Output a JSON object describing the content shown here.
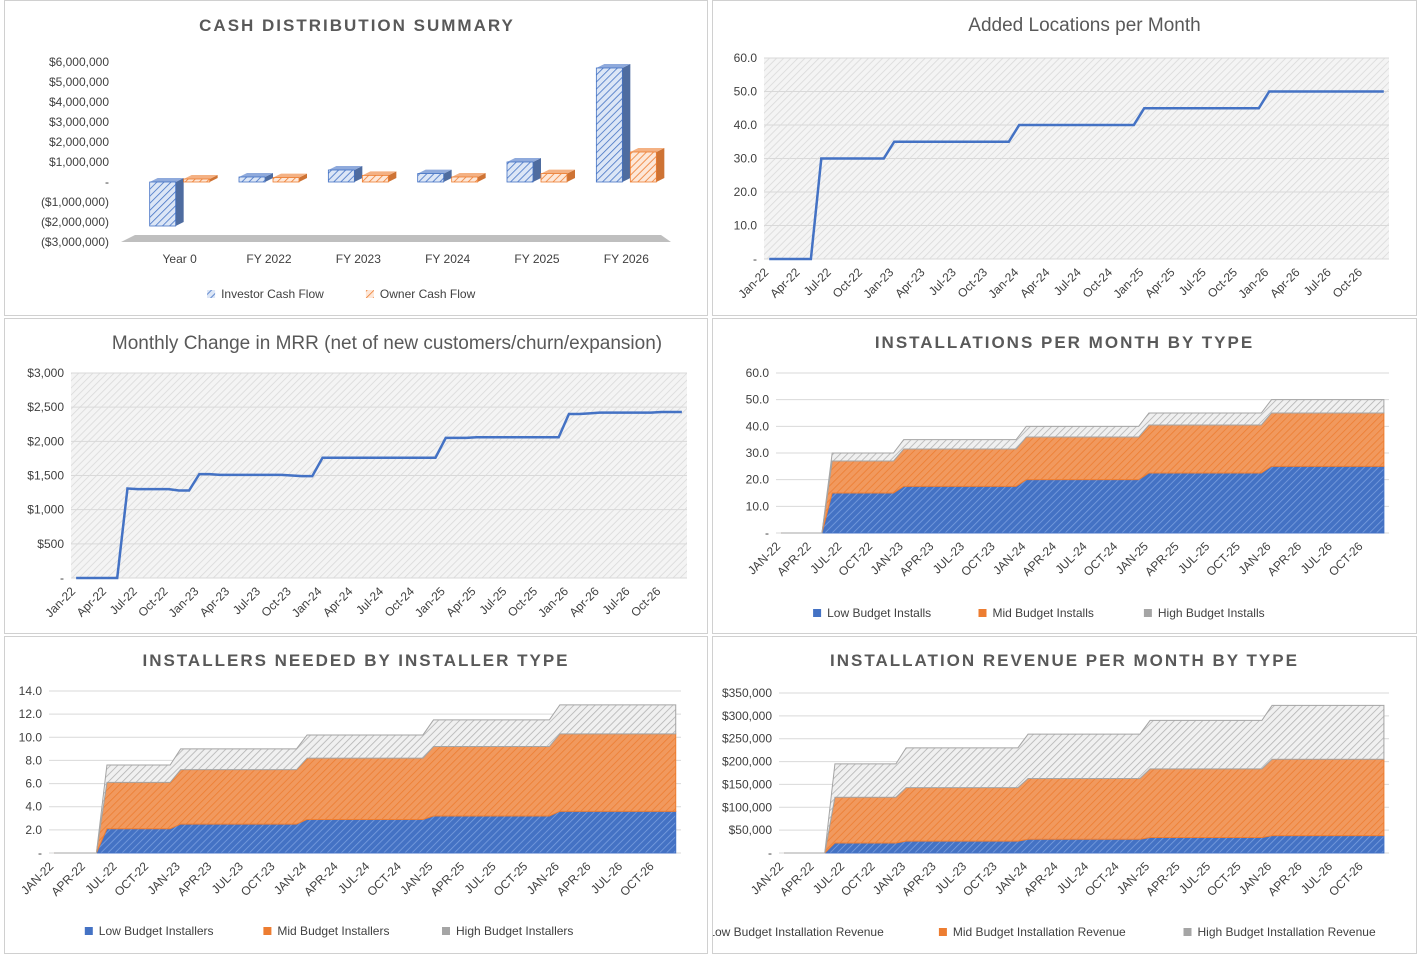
{
  "colors": {
    "blue": "#4472c4",
    "orange": "#ed7d31",
    "gray": "#a5a5a5",
    "plot_bg": "#f2f2f2",
    "title": "#595959"
  },
  "chart_data": [
    {
      "id": "cash",
      "type": "bar",
      "title": "CASH DISTRIBUTION SUMMARY",
      "categories": [
        "Year 0",
        "FY 2022",
        "FY 2023",
        "FY 2024",
        "FY 2025",
        "FY 2026"
      ],
      "series": [
        {
          "name": "Investor Cash Flow",
          "values": [
            -2200000,
            250000,
            600000,
            420000,
            1000000,
            5700000
          ]
        },
        {
          "name": "Owner Cash Flow",
          "values": [
            150000,
            220000,
            330000,
            250000,
            420000,
            1500000
          ]
        }
      ],
      "ylim": [
        -3000000,
        6000000
      ],
      "yticks": [
        {
          "v": 6000000,
          "label": "$6,000,000"
        },
        {
          "v": 5000000,
          "label": "$5,000,000"
        },
        {
          "v": 4000000,
          "label": "$4,000,000"
        },
        {
          "v": 3000000,
          "label": "$3,000,000"
        },
        {
          "v": 2000000,
          "label": "$2,000,000"
        },
        {
          "v": 1000000,
          "label": "$1,000,000"
        },
        {
          "v": 0,
          "label": "-"
        },
        {
          "v": -1000000,
          "label": "($1,000,000)"
        },
        {
          "v": -2000000,
          "label": "($2,000,000)"
        },
        {
          "v": -3000000,
          "label": "($3,000,000)"
        }
      ],
      "legend": "bottom"
    },
    {
      "id": "locations",
      "type": "line",
      "title": "Added Locations per Month",
      "x_labels": [
        "Jan-22",
        "Apr-22",
        "Jul-22",
        "Oct-22",
        "Jan-23",
        "Apr-23",
        "Jul-23",
        "Oct-23",
        "Jan-24",
        "Apr-24",
        "Jul-24",
        "Oct-24",
        "Jan-25",
        "Apr-25",
        "Jul-25",
        "Oct-25",
        "Jan-26",
        "Apr-26",
        "Jul-26",
        "Oct-26"
      ],
      "series": [
        {
          "values": [
            0,
            0,
            0,
            0,
            0,
            30,
            30,
            30,
            30,
            30,
            30,
            30,
            35,
            35,
            35,
            35,
            35,
            35,
            35,
            35,
            35,
            35,
            35,
            35,
            40,
            40,
            40,
            40,
            40,
            40,
            40,
            40,
            40,
            40,
            40,
            40,
            45,
            45,
            45,
            45,
            45,
            45,
            45,
            45,
            45,
            45,
            45,
            45,
            50,
            50,
            50,
            50,
            50,
            50,
            50,
            50,
            50,
            50,
            50,
            50
          ]
        }
      ],
      "ylim": [
        0,
        60
      ],
      "yticks": [
        "-",
        "10.0",
        "20.0",
        "30.0",
        "40.0",
        "50.0",
        "60.0"
      ],
      "legend": "none"
    },
    {
      "id": "mrr",
      "type": "line",
      "title": "Monthly Change in MRR (net of new customers/churn/expansion)",
      "x_labels": [
        "Jan-22",
        "Apr-22",
        "Jul-22",
        "Oct-22",
        "Jan-23",
        "Apr-23",
        "Jul-23",
        "Oct-23",
        "Jan-24",
        "Apr-24",
        "Jul-24",
        "Oct-24",
        "Jan-25",
        "Apr-25",
        "Jul-25",
        "Oct-25",
        "Jan-26",
        "Apr-26",
        "Jul-26",
        "Oct-26"
      ],
      "series": [
        {
          "values": [
            0,
            0,
            0,
            0,
            0,
            1310,
            1300,
            1300,
            1300,
            1300,
            1280,
            1280,
            1520,
            1520,
            1510,
            1510,
            1510,
            1510,
            1510,
            1510,
            1510,
            1500,
            1490,
            1490,
            1760,
            1760,
            1760,
            1760,
            1760,
            1760,
            1760,
            1760,
            1760,
            1760,
            1760,
            1760,
            2050,
            2050,
            2050,
            2060,
            2060,
            2060,
            2060,
            2060,
            2060,
            2060,
            2060,
            2060,
            2400,
            2400,
            2410,
            2420,
            2420,
            2420,
            2420,
            2420,
            2420,
            2430,
            2430,
            2430
          ]
        }
      ],
      "ylim": [
        0,
        3000
      ],
      "yticks": [
        "-",
        "$500",
        "$1,000",
        "$1,500",
        "$2,000",
        "$2,500",
        "$3,000"
      ],
      "legend": "none"
    },
    {
      "id": "installs",
      "type": "area",
      "stacked": true,
      "title": "INSTALLATIONS PER MONTH BY TYPE",
      "x_labels": [
        "JAN-22",
        "APR-22",
        "JUL-22",
        "OCT-22",
        "JAN-23",
        "APR-23",
        "JUL-23",
        "OCT-23",
        "JAN-24",
        "APR-24",
        "JUL-24",
        "OCT-24",
        "JAN-25",
        "APR-25",
        "JUL-25",
        "OCT-25",
        "JAN-26",
        "APR-26",
        "JUL-26",
        "OCT-26"
      ],
      "series": [
        {
          "name": "Low Budget Installs",
          "values": [
            0,
            0,
            0,
            0,
            0,
            15,
            15,
            15,
            15,
            15,
            15,
            15,
            17.5,
            17.5,
            17.5,
            17.5,
            17.5,
            17.5,
            17.5,
            17.5,
            17.5,
            17.5,
            17.5,
            17.5,
            20,
            20,
            20,
            20,
            20,
            20,
            20,
            20,
            20,
            20,
            20,
            20,
            22.5,
            22.5,
            22.5,
            22.5,
            22.5,
            22.5,
            22.5,
            22.5,
            22.5,
            22.5,
            22.5,
            22.5,
            25,
            25,
            25,
            25,
            25,
            25,
            25,
            25,
            25,
            25,
            25,
            25
          ]
        },
        {
          "name": "Mid Budget Installs",
          "values": [
            0,
            0,
            0,
            0,
            0,
            12,
            12,
            12,
            12,
            12,
            12,
            12,
            14,
            14,
            14,
            14,
            14,
            14,
            14,
            14,
            14,
            14,
            14,
            14,
            16,
            16,
            16,
            16,
            16,
            16,
            16,
            16,
            16,
            16,
            16,
            16,
            18,
            18,
            18,
            18,
            18,
            18,
            18,
            18,
            18,
            18,
            18,
            18,
            20,
            20,
            20,
            20,
            20,
            20,
            20,
            20,
            20,
            20,
            20,
            20
          ]
        },
        {
          "name": "High Budget Installs",
          "values": [
            0,
            0,
            0,
            0,
            0,
            3,
            3,
            3,
            3,
            3,
            3,
            3,
            3.5,
            3.5,
            3.5,
            3.5,
            3.5,
            3.5,
            3.5,
            3.5,
            3.5,
            3.5,
            3.5,
            3.5,
            4,
            4,
            4,
            4,
            4,
            4,
            4,
            4,
            4,
            4,
            4,
            4,
            4.5,
            4.5,
            4.5,
            4.5,
            4.5,
            4.5,
            4.5,
            4.5,
            4.5,
            4.5,
            4.5,
            4.5,
            5,
            5,
            5,
            5,
            5,
            5,
            5,
            5,
            5,
            5,
            5,
            5
          ]
        }
      ],
      "ylim": [
        0,
        60
      ],
      "yticks": [
        "-",
        "10.0",
        "20.0",
        "30.0",
        "40.0",
        "50.0",
        "60.0"
      ],
      "legend": "bottom"
    },
    {
      "id": "installers",
      "type": "area",
      "stacked": true,
      "title": "INSTALLERS NEEDED BY INSTALLER TYPE",
      "x_labels": [
        "JAN-22",
        "APR-22",
        "JUL-22",
        "OCT-22",
        "JAN-23",
        "APR-23",
        "JUL-23",
        "OCT-23",
        "JAN-24",
        "APR-24",
        "JUL-24",
        "OCT-24",
        "JAN-25",
        "APR-25",
        "JUL-25",
        "OCT-25",
        "JAN-26",
        "APR-26",
        "JUL-26",
        "OCT-26"
      ],
      "series": [
        {
          "name": "Low Budget Installers",
          "values": [
            0,
            0,
            0,
            0,
            0,
            2.1,
            2.1,
            2.1,
            2.1,
            2.1,
            2.1,
            2.1,
            2.5,
            2.5,
            2.5,
            2.5,
            2.5,
            2.5,
            2.5,
            2.5,
            2.5,
            2.5,
            2.5,
            2.5,
            2.9,
            2.9,
            2.9,
            2.9,
            2.9,
            2.9,
            2.9,
            2.9,
            2.9,
            2.9,
            2.9,
            2.9,
            3.2,
            3.2,
            3.2,
            3.2,
            3.2,
            3.2,
            3.2,
            3.2,
            3.2,
            3.2,
            3.2,
            3.2,
            3.6,
            3.6,
            3.6,
            3.6,
            3.6,
            3.6,
            3.6,
            3.6,
            3.6,
            3.6,
            3.6,
            3.6
          ]
        },
        {
          "name": "Mid Budget Installers",
          "values": [
            0,
            0,
            0,
            0,
            0,
            4,
            4,
            4,
            4,
            4,
            4,
            4,
            4.7,
            4.7,
            4.7,
            4.7,
            4.7,
            4.7,
            4.7,
            4.7,
            4.7,
            4.7,
            4.7,
            4.7,
            5.3,
            5.3,
            5.3,
            5.3,
            5.3,
            5.3,
            5.3,
            5.3,
            5.3,
            5.3,
            5.3,
            5.3,
            6,
            6,
            6,
            6,
            6,
            6,
            6,
            6,
            6,
            6,
            6,
            6,
            6.7,
            6.7,
            6.7,
            6.7,
            6.7,
            6.7,
            6.7,
            6.7,
            6.7,
            6.7,
            6.7,
            6.7
          ]
        },
        {
          "name": "High Budget Installers",
          "values": [
            0,
            0,
            0,
            0,
            0,
            1.5,
            1.5,
            1.5,
            1.5,
            1.5,
            1.5,
            1.5,
            1.8,
            1.8,
            1.8,
            1.8,
            1.8,
            1.8,
            1.8,
            1.8,
            1.8,
            1.8,
            1.8,
            1.8,
            2,
            2,
            2,
            2,
            2,
            2,
            2,
            2,
            2,
            2,
            2,
            2,
            2.3,
            2.3,
            2.3,
            2.3,
            2.3,
            2.3,
            2.3,
            2.3,
            2.3,
            2.3,
            2.3,
            2.3,
            2.5,
            2.5,
            2.5,
            2.5,
            2.5,
            2.5,
            2.5,
            2.5,
            2.5,
            2.5,
            2.5,
            2.5
          ]
        }
      ],
      "ylim": [
        0,
        14
      ],
      "yticks": [
        "-",
        "2.0",
        "4.0",
        "6.0",
        "8.0",
        "10.0",
        "12.0",
        "14.0"
      ],
      "legend": "bottom"
    },
    {
      "id": "revenue",
      "type": "area",
      "stacked": true,
      "title": "INSTALLATION REVENUE PER MONTH BY TYPE",
      "x_labels": [
        "JAN-22",
        "APR-22",
        "JUL-22",
        "OCT-22",
        "JAN-23",
        "APR-23",
        "JUL-23",
        "OCT-23",
        "JAN-24",
        "APR-24",
        "JUL-24",
        "OCT-24",
        "JAN-25",
        "APR-25",
        "JUL-25",
        "OCT-25",
        "JAN-26",
        "APR-26",
        "JUL-26",
        "OCT-26"
      ],
      "series": [
        {
          "name": "Low Budget Installation Revenue",
          "values": [
            0,
            0,
            0,
            0,
            0,
            22000,
            22000,
            22000,
            22000,
            22000,
            22000,
            22000,
            26000,
            26000,
            26000,
            26000,
            26000,
            26000,
            26000,
            26000,
            26000,
            26000,
            26000,
            26000,
            30000,
            30000,
            30000,
            30000,
            30000,
            30000,
            30000,
            30000,
            30000,
            30000,
            30000,
            30000,
            34000,
            34000,
            34000,
            34000,
            34000,
            34000,
            34000,
            34000,
            34000,
            34000,
            34000,
            34000,
            38000,
            38000,
            38000,
            38000,
            38000,
            38000,
            38000,
            38000,
            38000,
            38000,
            38000,
            38000
          ]
        },
        {
          "name": "Mid Budget Installation Revenue",
          "values": [
            0,
            0,
            0,
            0,
            0,
            100000,
            100000,
            100000,
            100000,
            100000,
            100000,
            100000,
            117000,
            117000,
            117000,
            117000,
            117000,
            117000,
            117000,
            117000,
            117000,
            117000,
            117000,
            117000,
            133000,
            133000,
            133000,
            133000,
            133000,
            133000,
            133000,
            133000,
            133000,
            133000,
            133000,
            133000,
            150000,
            150000,
            150000,
            150000,
            150000,
            150000,
            150000,
            150000,
            150000,
            150000,
            150000,
            150000,
            167000,
            167000,
            167000,
            167000,
            167000,
            167000,
            167000,
            167000,
            167000,
            167000,
            167000,
            167000
          ]
        },
        {
          "name": "High Budget Installation Revenue",
          "values": [
            0,
            0,
            0,
            0,
            0,
            73000,
            73000,
            73000,
            73000,
            73000,
            73000,
            73000,
            87000,
            87000,
            87000,
            87000,
            87000,
            87000,
            87000,
            87000,
            87000,
            87000,
            87000,
            87000,
            97000,
            97000,
            97000,
            97000,
            97000,
            97000,
            97000,
            97000,
            97000,
            97000,
            97000,
            97000,
            106000,
            106000,
            106000,
            106000,
            106000,
            106000,
            106000,
            106000,
            106000,
            106000,
            106000,
            106000,
            118000,
            118000,
            118000,
            118000,
            118000,
            118000,
            118000,
            118000,
            118000,
            118000,
            118000,
            118000
          ]
        }
      ],
      "ylim": [
        0,
        350000
      ],
      "yticks": [
        "-",
        "$50,000",
        "$100,000",
        "$150,000",
        "$200,000",
        "$250,000",
        "$300,000",
        "$350,000"
      ],
      "legend": "bottom"
    }
  ]
}
